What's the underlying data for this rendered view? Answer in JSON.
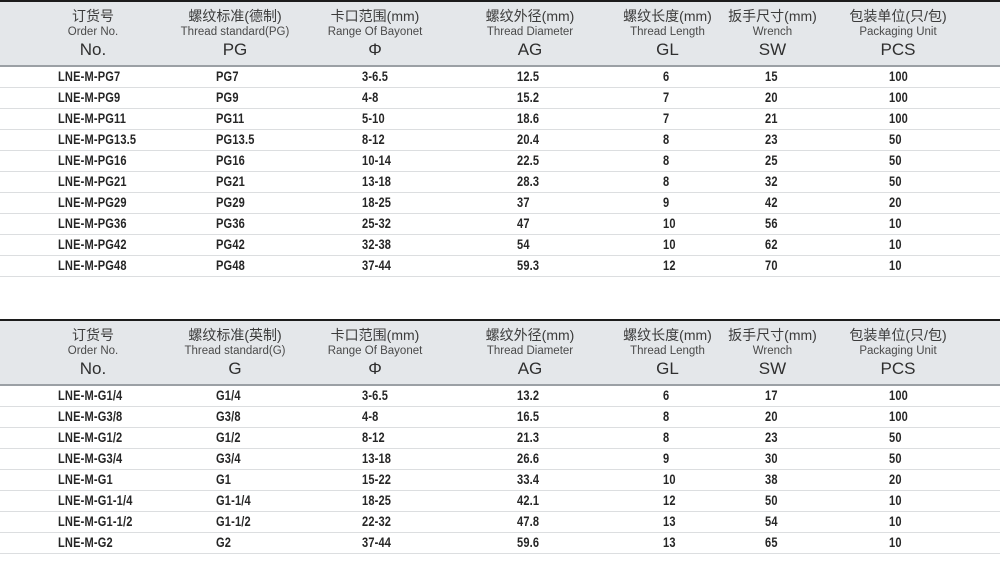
{
  "colors": {
    "header_background": "#e4e7ea",
    "header_top_border": "#1c1c1c",
    "header_bottom_rule": "#9ba0a5",
    "row_separator": "#dcdee0",
    "data_text": "#262626"
  },
  "tables": [
    {
      "name": "pg-thread-spec-table",
      "columns": [
        {
          "zh": "订货号",
          "en": "Order No.",
          "code": "No."
        },
        {
          "zh": "螺纹标准(德制)",
          "en": "Thread standard(PG)",
          "code": "PG"
        },
        {
          "zh": "卡口范围(mm)",
          "en": "Range Of Bayonet",
          "code": "Φ"
        },
        {
          "zh": "螺纹外径(mm)",
          "en": "Thread Diameter",
          "code": "AG"
        },
        {
          "zh": "螺纹长度(mm)",
          "en": "Thread Length",
          "code": "GL"
        },
        {
          "zh": "扳手尺寸(mm)",
          "en": "Wrench",
          "code": "SW"
        },
        {
          "zh": "包装单位(只/包)",
          "en": "Packaging Unit",
          "code": "PCS"
        }
      ],
      "rows": [
        [
          "LNE-M-PG7",
          "PG7",
          "3-6.5",
          "12.5",
          "6",
          "15",
          "100"
        ],
        [
          "LNE-M-PG9",
          "PG9",
          "4-8",
          "15.2",
          "7",
          "20",
          "100"
        ],
        [
          "LNE-M-PG11",
          "PG11",
          "5-10",
          "18.6",
          "7",
          "21",
          "100"
        ],
        [
          "LNE-M-PG13.5",
          "PG13.5",
          "8-12",
          "20.4",
          "8",
          "23",
          "50"
        ],
        [
          "LNE-M-PG16",
          "PG16",
          "10-14",
          "22.5",
          "8",
          "25",
          "50"
        ],
        [
          "LNE-M-PG21",
          "PG21",
          "13-18",
          "28.3",
          "8",
          "32",
          "50"
        ],
        [
          "LNE-M-PG29",
          "PG29",
          "18-25",
          "37",
          "9",
          "42",
          "20"
        ],
        [
          "LNE-M-PG36",
          "PG36",
          "25-32",
          "47",
          "10",
          "56",
          "10"
        ],
        [
          "LNE-M-PG42",
          "PG42",
          "32-38",
          "54",
          "10",
          "62",
          "10"
        ],
        [
          "LNE-M-PG48",
          "PG48",
          "37-44",
          "59.3",
          "12",
          "70",
          "10"
        ]
      ]
    },
    {
      "name": "g-thread-spec-table",
      "columns": [
        {
          "zh": "订货号",
          "en": "Order No.",
          "code": "No."
        },
        {
          "zh": "螺纹标准(英制)",
          "en": "Thread standard(G)",
          "code": "G"
        },
        {
          "zh": "卡口范围(mm)",
          "en": "Range Of Bayonet",
          "code": "Φ"
        },
        {
          "zh": "螺纹外径(mm)",
          "en": "Thread Diameter",
          "code": "AG"
        },
        {
          "zh": "螺纹长度(mm)",
          "en": "Thread Length",
          "code": "GL"
        },
        {
          "zh": "扳手尺寸(mm)",
          "en": "Wrench",
          "code": "SW"
        },
        {
          "zh": "包装单位(只/包)",
          "en": "Packaging Unit",
          "code": "PCS"
        }
      ],
      "rows": [
        [
          "LNE-M-G1/4",
          "G1/4",
          "3-6.5",
          "13.2",
          "6",
          "17",
          "100"
        ],
        [
          "LNE-M-G3/8",
          "G3/8",
          "4-8",
          "16.5",
          "8",
          "20",
          "100"
        ],
        [
          "LNE-M-G1/2",
          "G1/2",
          "8-12",
          "21.3",
          "8",
          "23",
          "50"
        ],
        [
          "LNE-M-G3/4",
          "G3/4",
          "13-18",
          "26.6",
          "9",
          "30",
          "50"
        ],
        [
          "LNE-M-G1",
          "G1",
          "15-22",
          "33.4",
          "10",
          "38",
          "20"
        ],
        [
          "LNE-M-G1-1/4",
          "G1-1/4",
          "18-25",
          "42.1",
          "12",
          "50",
          "10"
        ],
        [
          "LNE-M-G1-1/2",
          "G1-1/2",
          "22-32",
          "47.8",
          "13",
          "54",
          "10"
        ],
        [
          "LNE-M-G2",
          "G2",
          "37-44",
          "59.6",
          "13",
          "65",
          "10"
        ]
      ]
    }
  ]
}
